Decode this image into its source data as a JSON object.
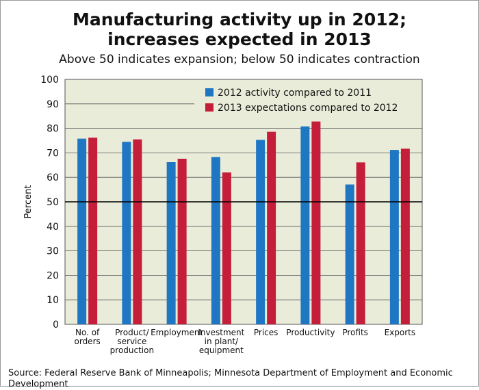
{
  "title_line1": "Manufacturing activity up in 2012;",
  "title_line2": "increases expected in 2013",
  "subtitle": "Above 50 indicates expansion; below 50 indicates contraction",
  "source": "Source: Federal Reserve Bank of Minneapolis; Minnesota Department of Employment and Economic Development",
  "colors": {
    "plot_bg": "#e9ecd9",
    "series_2012": "#1f77c3",
    "series_2013": "#c41e3a",
    "reference_line": "#000000",
    "grid": "#555555"
  },
  "chart_data": {
    "type": "bar",
    "ylabel": "Percent",
    "xlabel": "",
    "ylim": [
      0,
      100
    ],
    "yticks": [
      0,
      10,
      20,
      30,
      40,
      50,
      60,
      70,
      80,
      90,
      100
    ],
    "reference_line": 50,
    "grid": "horizontal",
    "legend_placement": "top-right",
    "categories": [
      [
        "No. of",
        "orders"
      ],
      [
        "Product/",
        "service",
        "production"
      ],
      [
        "Employment"
      ],
      [
        "Investment",
        "in plant/",
        "equipment"
      ],
      [
        "Prices"
      ],
      [
        "Productivity"
      ],
      [
        "Profits"
      ],
      [
        "Exports"
      ]
    ],
    "series": [
      {
        "name": "2012 activity compared to 2011",
        "values": [
          75.8,
          74.5,
          66.2,
          68.3,
          75.3,
          80.8,
          57.1,
          71.2
        ]
      },
      {
        "name": "2013 expectations compared to 2012",
        "values": [
          76.2,
          75.5,
          67.6,
          62.0,
          78.6,
          82.8,
          66.1,
          71.7
        ]
      }
    ]
  }
}
